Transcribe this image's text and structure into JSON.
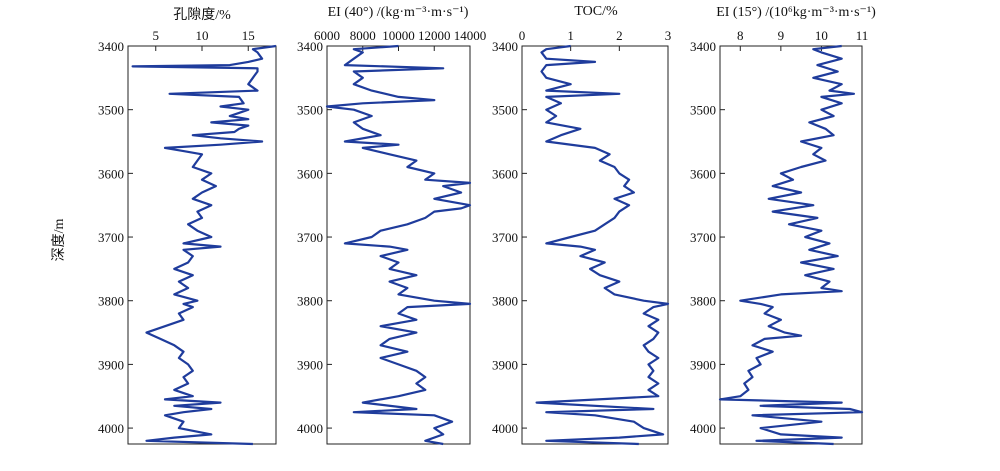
{
  "ylabel": "深度/m",
  "chart_data": [
    {
      "type": "line",
      "title": "孔隙度/%",
      "xlim": [
        2,
        18
      ],
      "xticks": [
        5,
        10,
        15
      ],
      "ylim": [
        4025,
        3400
      ],
      "yticks": [
        3400,
        3500,
        3600,
        3700,
        3800,
        3900,
        4000
      ],
      "series": [
        {
          "color": "#1f3c9c",
          "depth": [
            3400,
            3405,
            3410,
            3420,
            3425,
            3430,
            3432,
            3435,
            3440,
            3450,
            3460,
            3470,
            3475,
            3480,
            3490,
            3495,
            3500,
            3505,
            3510,
            3515,
            3520,
            3525,
            3530,
            3535,
            3540,
            3545,
            3550,
            3555,
            3560,
            3565,
            3570,
            3580,
            3590,
            3600,
            3610,
            3620,
            3630,
            3640,
            3650,
            3660,
            3670,
            3680,
            3690,
            3700,
            3710,
            3715,
            3720,
            3730,
            3740,
            3750,
            3760,
            3770,
            3780,
            3790,
            3800,
            3805,
            3810,
            3820,
            3830,
            3840,
            3850,
            3860,
            3870,
            3880,
            3890,
            3900,
            3910,
            3920,
            3930,
            3940,
            3950,
            3955,
            3960,
            3965,
            3970,
            3975,
            3980,
            3990,
            4000,
            4010,
            4015,
            4020,
            4025
          ],
          "values": [
            18,
            15.5,
            16,
            16.5,
            15,
            13,
            2.5,
            16,
            16,
            15.5,
            15,
            16,
            6.5,
            14,
            14.5,
            12,
            15,
            14,
            13,
            15,
            11,
            15,
            14,
            13.5,
            9,
            12,
            16.5,
            12,
            6,
            8,
            10,
            9.5,
            9,
            11,
            10,
            11.5,
            10,
            9,
            11,
            9.5,
            10,
            8.5,
            9.5,
            11,
            8,
            12,
            8,
            9,
            8.5,
            7,
            9,
            7.5,
            8.5,
            7,
            9.5,
            8,
            9,
            7.5,
            8,
            6,
            4,
            5.5,
            7,
            8,
            7.5,
            8.5,
            9,
            8,
            8.5,
            7,
            9,
            6,
            12,
            7,
            11,
            8,
            6,
            8,
            7.5,
            11,
            7,
            4,
            15.5
          ]
        }
      ]
    },
    {
      "type": "line",
      "title": "EI (40°) /(kg·m⁻³·m·s⁻¹)",
      "xlim": [
        6000,
        14000
      ],
      "xticks": [
        6000,
        8000,
        10000,
        12000,
        14000
      ],
      "ylim": [
        4025,
        3400
      ],
      "yticks": [
        3400,
        3500,
        3600,
        3700,
        3800,
        3900,
        4000
      ],
      "series": [
        {
          "color": "#1f3c9c",
          "depth": [
            3400,
            3405,
            3410,
            3420,
            3430,
            3435,
            3440,
            3450,
            3460,
            3470,
            3480,
            3485,
            3490,
            3495,
            3500,
            3510,
            3520,
            3530,
            3540,
            3550,
            3555,
            3560,
            3570,
            3580,
            3590,
            3600,
            3610,
            3615,
            3620,
            3630,
            3640,
            3650,
            3655,
            3660,
            3670,
            3680,
            3690,
            3700,
            3710,
            3715,
            3720,
            3730,
            3740,
            3750,
            3760,
            3770,
            3780,
            3790,
            3800,
            3805,
            3810,
            3820,
            3830,
            3840,
            3850,
            3860,
            3870,
            3880,
            3890,
            3900,
            3910,
            3920,
            3930,
            3940,
            3950,
            3960,
            3970,
            3975,
            3980,
            3990,
            4000,
            4010,
            4020,
            4025
          ],
          "values": [
            10000,
            7500,
            8000,
            7500,
            7000,
            12500,
            7500,
            8000,
            7500,
            8500,
            10000,
            12000,
            8000,
            6000,
            7500,
            8500,
            7500,
            8000,
            9000,
            7000,
            10000,
            8000,
            9500,
            11000,
            10500,
            12000,
            11500,
            14000,
            12500,
            13500,
            12000,
            14000,
            13500,
            12000,
            11500,
            10500,
            9000,
            8500,
            7000,
            9500,
            10500,
            9000,
            10000,
            9500,
            11000,
            9500,
            10500,
            10000,
            12000,
            14000,
            10500,
            10000,
            11000,
            9000,
            11000,
            9500,
            9000,
            10500,
            9000,
            10000,
            11000,
            11500,
            11000,
            11500,
            10000,
            8000,
            11000,
            7500,
            12000,
            13000,
            12000,
            12500,
            11500,
            12500
          ]
        }
      ]
    },
    {
      "type": "line",
      "title": "TOC/%",
      "xlim": [
        0,
        3
      ],
      "xticks": [
        0,
        1,
        2,
        3
      ],
      "ylim": [
        4025,
        3400
      ],
      "yticks": [
        3400,
        3500,
        3600,
        3700,
        3800,
        3900,
        4000
      ],
      "series": [
        {
          "color": "#1f3c9c",
          "depth": [
            3400,
            3405,
            3410,
            3420,
            3425,
            3430,
            3440,
            3450,
            3460,
            3470,
            3475,
            3480,
            3490,
            3500,
            3510,
            3520,
            3530,
            3540,
            3550,
            3560,
            3570,
            3580,
            3590,
            3600,
            3610,
            3620,
            3630,
            3640,
            3650,
            3660,
            3670,
            3680,
            3690,
            3700,
            3710,
            3715,
            3720,
            3730,
            3740,
            3750,
            3760,
            3770,
            3780,
            3790,
            3800,
            3805,
            3810,
            3820,
            3830,
            3840,
            3850,
            3860,
            3870,
            3880,
            3890,
            3900,
            3910,
            3920,
            3930,
            3940,
            3950,
            3960,
            3970,
            3975,
            3980,
            3990,
            4000,
            4010,
            4015,
            4020,
            4025
          ],
          "values": [
            1.0,
            0.5,
            0.4,
            0.5,
            1.5,
            0.5,
            0.4,
            0.5,
            1.0,
            0.5,
            2.0,
            0.5,
            0.8,
            0.5,
            0.7,
            0.5,
            1.2,
            0.8,
            0.5,
            1.5,
            1.8,
            1.6,
            1.9,
            2.0,
            2.2,
            2.1,
            2.3,
            1.9,
            2.2,
            2.0,
            1.9,
            1.7,
            1.5,
            1.0,
            0.5,
            1.2,
            1.5,
            1.2,
            1.7,
            1.4,
            1.6,
            2.0,
            1.7,
            1.9,
            2.5,
            3.0,
            2.7,
            2.5,
            2.8,
            2.6,
            2.8,
            2.7,
            2.5,
            2.6,
            2.8,
            2.6,
            2.7,
            2.6,
            2.8,
            2.6,
            2.8,
            0.3,
            2.7,
            0.5,
            1.5,
            2.3,
            2.5,
            2.9,
            2.0,
            0.5,
            2.4
          ]
        }
      ]
    },
    {
      "type": "line",
      "title": "EI (15°) /(10⁶kg·m⁻³·m·s⁻¹)",
      "xlim": [
        7.5,
        11
      ],
      "xticks": [
        8,
        9,
        10,
        11
      ],
      "ylim": [
        4025,
        3400
      ],
      "yticks": [
        3400,
        3500,
        3600,
        3700,
        3800,
        3900,
        4000
      ],
      "series": [
        {
          "color": "#1f3c9c",
          "depth": [
            3400,
            3405,
            3410,
            3420,
            3430,
            3440,
            3450,
            3460,
            3470,
            3475,
            3480,
            3490,
            3500,
            3510,
            3520,
            3530,
            3540,
            3550,
            3560,
            3570,
            3580,
            3590,
            3600,
            3610,
            3620,
            3630,
            3640,
            3650,
            3660,
            3670,
            3680,
            3690,
            3700,
            3710,
            3720,
            3730,
            3740,
            3750,
            3760,
            3770,
            3780,
            3785,
            3790,
            3800,
            3805,
            3810,
            3820,
            3830,
            3840,
            3850,
            3855,
            3860,
            3870,
            3880,
            3890,
            3900,
            3910,
            3920,
            3930,
            3940,
            3950,
            3955,
            3960,
            3965,
            3970,
            3975,
            3980,
            3990,
            4000,
            4010,
            4015,
            4020,
            4025
          ],
          "values": [
            10.5,
            9.8,
            10.0,
            10.5,
            9.9,
            10.4,
            9.8,
            10.5,
            10.2,
            10.8,
            10.0,
            10.5,
            10.0,
            10.3,
            9.7,
            10.1,
            10.3,
            9.5,
            10.0,
            9.8,
            10.1,
            9.5,
            9.0,
            9.3,
            8.8,
            9.5,
            8.7,
            9.8,
            8.8,
            9.9,
            9.2,
            10.0,
            9.6,
            10.2,
            9.7,
            10.4,
            9.5,
            10.3,
            9.6,
            10.2,
            10.0,
            10.5,
            9.0,
            8.0,
            8.5,
            8.8,
            8.6,
            9.0,
            8.7,
            9.1,
            9.5,
            8.6,
            8.3,
            8.8,
            8.4,
            8.5,
            8.2,
            8.3,
            8.1,
            8.2,
            8.0,
            7.5,
            10.5,
            8.5,
            10.7,
            11.0,
            8.3,
            10.0,
            8.5,
            9.0,
            10.5,
            8.4,
            10.3
          ]
        }
      ]
    }
  ]
}
